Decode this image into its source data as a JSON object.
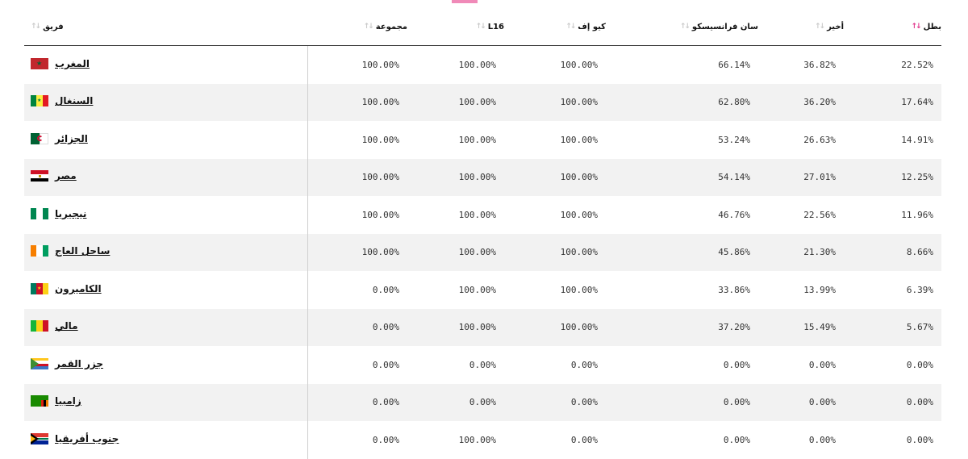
{
  "header": {
    "team": "فريق",
    "total": "مجموعة",
    "r16": "L16",
    "qf": "كيو إف",
    "sf": "سان فرانسيسكو",
    "final": "أخير",
    "champion": "بطل"
  },
  "accent_color": "#e0338a",
  "rows": [
    {
      "team": "المغرب",
      "flag": "morocco-flag",
      "total": "100.00%",
      "r16": "100.00%",
      "qf": "100.00%",
      "sf": "66.14%",
      "final": "36.82%",
      "champion": "22.52%"
    },
    {
      "team": "السنغال",
      "flag": "senegal-flag",
      "total": "100.00%",
      "r16": "100.00%",
      "qf": "100.00%",
      "sf": "62.80%",
      "final": "36.20%",
      "champion": "17.64%"
    },
    {
      "team": "الجزائر",
      "flag": "algeria-flag",
      "total": "100.00%",
      "r16": "100.00%",
      "qf": "100.00%",
      "sf": "53.24%",
      "final": "26.63%",
      "champion": "14.91%"
    },
    {
      "team": "مصر",
      "flag": "egypt-flag",
      "total": "100.00%",
      "r16": "100.00%",
      "qf": "100.00%",
      "sf": "54.14%",
      "final": "27.01%",
      "champion": "12.25%"
    },
    {
      "team": "نيجيريا",
      "flag": "nigeria-flag",
      "total": "100.00%",
      "r16": "100.00%",
      "qf": "100.00%",
      "sf": "46.76%",
      "final": "22.56%",
      "champion": "11.96%"
    },
    {
      "team": "ساحل العاج",
      "flag": "ivory-coast-flag",
      "total": "100.00%",
      "r16": "100.00%",
      "qf": "100.00%",
      "sf": "45.86%",
      "final": "21.30%",
      "champion": "8.66%"
    },
    {
      "team": "الكاميرون",
      "flag": "cameroon-flag",
      "total": "0.00%",
      "r16": "100.00%",
      "qf": "100.00%",
      "sf": "33.86%",
      "final": "13.99%",
      "champion": "6.39%"
    },
    {
      "team": "مالي",
      "flag": "mali-flag",
      "total": "0.00%",
      "r16": "100.00%",
      "qf": "100.00%",
      "sf": "37.20%",
      "final": "15.49%",
      "champion": "5.67%"
    },
    {
      "team": "جزر القمر",
      "flag": "comoros-flag",
      "total": "0.00%",
      "r16": "0.00%",
      "qf": "0.00%",
      "sf": "0.00%",
      "final": "0.00%",
      "champion": "0.00%"
    },
    {
      "team": "زامبيا",
      "flag": "zambia-flag",
      "total": "0.00%",
      "r16": "0.00%",
      "qf": "0.00%",
      "sf": "0.00%",
      "final": "0.00%",
      "champion": "0.00%"
    },
    {
      "team": "جنوب أفريقيا",
      "flag": "south-africa-flag",
      "total": "0.00%",
      "r16": "100.00%",
      "qf": "0.00%",
      "sf": "0.00%",
      "final": "0.00%",
      "champion": "0.00%"
    }
  ]
}
